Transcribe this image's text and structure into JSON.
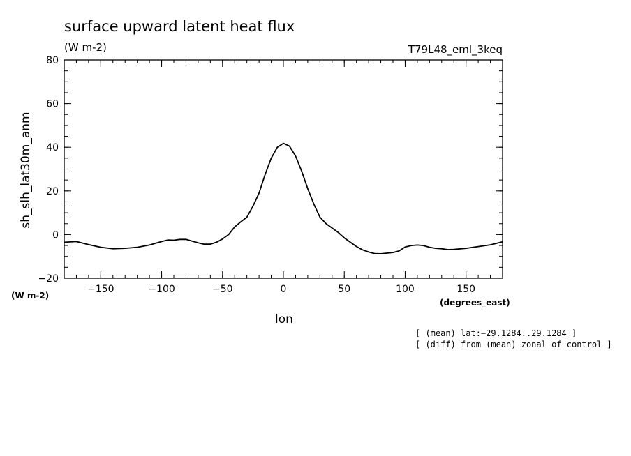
{
  "chart_data": {
    "type": "line",
    "title": "surface upward latent heat flux",
    "subtitle": "(W m-2)",
    "experiment": "T79L48_eml_3keq",
    "ylabel": "sh_slh_lat30m_anm",
    "yunits": "(W m-2)",
    "xlabel": "lon",
    "xunits": "(degrees_east)",
    "xlim": [
      -180,
      180
    ],
    "ylim": [
      -20,
      80
    ],
    "xticks": [
      -150,
      -100,
      -50,
      0,
      50,
      100,
      150
    ],
    "xtick_labels": [
      "−150",
      "−100",
      "−50",
      "0",
      "50",
      "100",
      "150"
    ],
    "yticks": [
      -20,
      0,
      20,
      40,
      60,
      80
    ],
    "ytick_labels": [
      "−20",
      "0",
      "20",
      "40",
      "60",
      "80"
    ],
    "notes": [
      "[ (mean) lat:−29.1284..29.1284 ]",
      "[ (diff) from (mean) zonal of control ]"
    ],
    "grid": false,
    "series": [
      {
        "color": "#000000",
        "x": [
          -180,
          -170,
          -160,
          -150,
          -140,
          -130,
          -120,
          -110,
          -100,
          -95,
          -90,
          -85,
          -80,
          -75,
          -70,
          -65,
          -60,
          -55,
          -50,
          -45,
          -40,
          -35,
          -30,
          -25,
          -20,
          -15,
          -10,
          -5,
          0,
          5,
          10,
          15,
          20,
          25,
          30,
          35,
          40,
          45,
          50,
          55,
          60,
          65,
          70,
          75,
          80,
          85,
          90,
          95,
          100,
          105,
          110,
          115,
          120,
          125,
          130,
          135,
          140,
          150,
          160,
          170,
          180
        ],
        "y": [
          -3.5,
          -3.2,
          -4.6,
          -5.8,
          -6.5,
          -6.3,
          -5.8,
          -4.8,
          -3.2,
          -2.5,
          -2.6,
          -2.2,
          -2.2,
          -3,
          -3.8,
          -4.4,
          -4.4,
          -3.5,
          -2,
          0,
          3.5,
          5.8,
          8,
          13,
          19,
          27.5,
          35,
          40,
          41.8,
          40.5,
          36,
          29,
          21,
          14,
          8,
          5,
          3,
          1,
          -1.5,
          -3.5,
          -5.5,
          -7,
          -8,
          -8.7,
          -8.8,
          -8.5,
          -8.2,
          -7.5,
          -5.7,
          -5,
          -4.8,
          -5,
          -5.8,
          -6.3,
          -6.5,
          -6.9,
          -6.8,
          -6.3,
          -5.5,
          -4.7,
          -3.3
        ]
      }
    ]
  }
}
